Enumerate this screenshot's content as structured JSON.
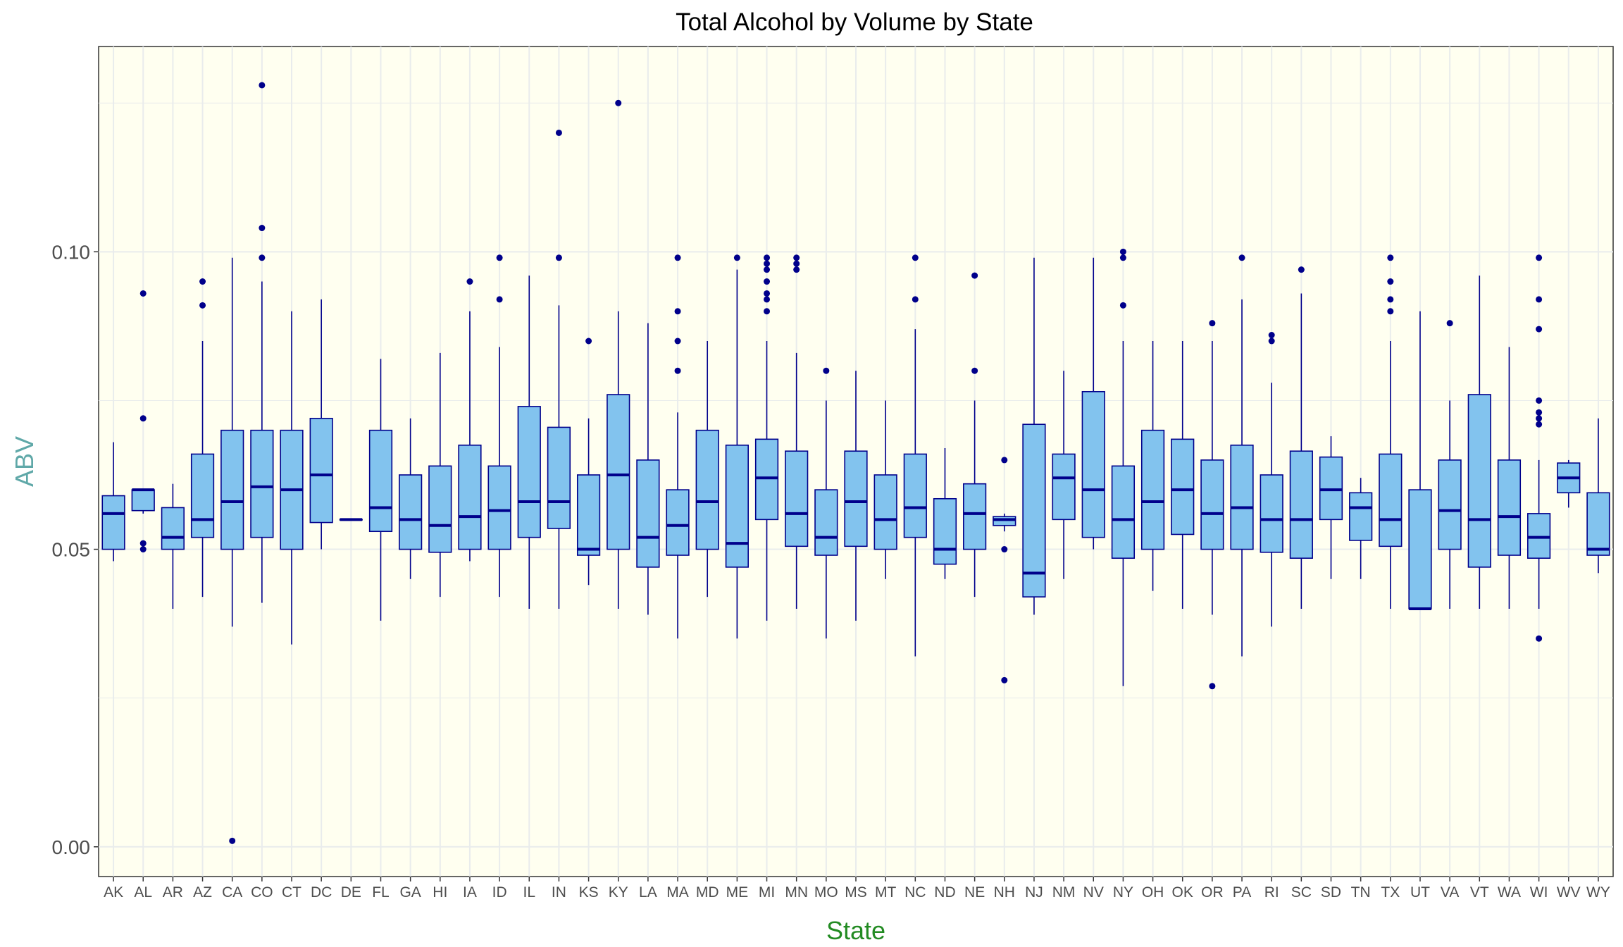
{
  "chart_data": {
    "type": "box",
    "title": "Total Alcohol by Volume by State",
    "xlabel": "State",
    "ylabel": "ABV",
    "ylim": [
      -0.005,
      0.1345
    ],
    "yticks": [
      0.0,
      0.05,
      0.1
    ],
    "ytick_labels": [
      "0.00",
      "0.05",
      "0.10"
    ],
    "grid": true,
    "colors": {
      "panel_background": "#fffff0",
      "grid": "#e9ecec",
      "box_fill": "#82c3ee",
      "box_line": "#00008b",
      "xlabel_color": "#228b22",
      "ylabel_color": "#5fa8a8"
    },
    "categories": [
      "AK",
      "AL",
      "AR",
      "AZ",
      "CA",
      "CO",
      "CT",
      "DC",
      "DE",
      "FL",
      "GA",
      "HI",
      "IA",
      "ID",
      "IL",
      "IN",
      "KS",
      "KY",
      "LA",
      "MA",
      "MD",
      "ME",
      "MI",
      "MN",
      "MO",
      "MS",
      "MT",
      "NC",
      "ND",
      "NE",
      "NH",
      "NJ",
      "NM",
      "NV",
      "NY",
      "OH",
      "OK",
      "OR",
      "PA",
      "RI",
      "SC",
      "SD",
      "TN",
      "TX",
      "UT",
      "VA",
      "VT",
      "WA",
      "WI",
      "WV",
      "WY"
    ],
    "boxes": [
      {
        "q1": 0.05,
        "median": 0.056,
        "q3": 0.059,
        "lower": 0.048,
        "upper": 0.068,
        "outliers": []
      },
      {
        "q1": 0.0565,
        "median": 0.06,
        "q3": 0.06,
        "lower": 0.056,
        "upper": 0.06,
        "outliers": [
          0.05,
          0.051,
          0.072,
          0.093
        ]
      },
      {
        "q1": 0.05,
        "median": 0.052,
        "q3": 0.057,
        "lower": 0.04,
        "upper": 0.061,
        "outliers": []
      },
      {
        "q1": 0.052,
        "median": 0.055,
        "q3": 0.066,
        "lower": 0.042,
        "upper": 0.085,
        "outliers": [
          0.091,
          0.095
        ]
      },
      {
        "q1": 0.05,
        "median": 0.058,
        "q3": 0.07,
        "lower": 0.037,
        "upper": 0.099,
        "outliers": [
          0.001
        ]
      },
      {
        "q1": 0.052,
        "median": 0.0605,
        "q3": 0.07,
        "lower": 0.041,
        "upper": 0.095,
        "outliers": [
          0.099,
          0.104,
          0.128
        ]
      },
      {
        "q1": 0.05,
        "median": 0.06,
        "q3": 0.07,
        "lower": 0.034,
        "upper": 0.09,
        "outliers": []
      },
      {
        "q1": 0.0545,
        "median": 0.0625,
        "q3": 0.072,
        "lower": 0.05,
        "upper": 0.092,
        "outliers": []
      },
      {
        "q1": 0.055,
        "median": 0.055,
        "q3": 0.055,
        "lower": 0.055,
        "upper": 0.055,
        "outliers": []
      },
      {
        "q1": 0.053,
        "median": 0.057,
        "q3": 0.07,
        "lower": 0.038,
        "upper": 0.082,
        "outliers": []
      },
      {
        "q1": 0.05,
        "median": 0.055,
        "q3": 0.0625,
        "lower": 0.045,
        "upper": 0.072,
        "outliers": []
      },
      {
        "q1": 0.0495,
        "median": 0.054,
        "q3": 0.064,
        "lower": 0.042,
        "upper": 0.083,
        "outliers": []
      },
      {
        "q1": 0.05,
        "median": 0.0555,
        "q3": 0.0675,
        "lower": 0.048,
        "upper": 0.09,
        "outliers": [
          0.095
        ]
      },
      {
        "q1": 0.05,
        "median": 0.0565,
        "q3": 0.064,
        "lower": 0.042,
        "upper": 0.084,
        "outliers": [
          0.092,
          0.099
        ]
      },
      {
        "q1": 0.052,
        "median": 0.058,
        "q3": 0.074,
        "lower": 0.04,
        "upper": 0.096,
        "outliers": []
      },
      {
        "q1": 0.0535,
        "median": 0.058,
        "q3": 0.0705,
        "lower": 0.04,
        "upper": 0.091,
        "outliers": [
          0.099,
          0.12
        ]
      },
      {
        "q1": 0.049,
        "median": 0.05,
        "q3": 0.0625,
        "lower": 0.044,
        "upper": 0.072,
        "outliers": [
          0.085
        ]
      },
      {
        "q1": 0.05,
        "median": 0.0625,
        "q3": 0.076,
        "lower": 0.04,
        "upper": 0.09,
        "outliers": [
          0.125
        ]
      },
      {
        "q1": 0.047,
        "median": 0.052,
        "q3": 0.065,
        "lower": 0.039,
        "upper": 0.088,
        "outliers": []
      },
      {
        "q1": 0.049,
        "median": 0.054,
        "q3": 0.06,
        "lower": 0.035,
        "upper": 0.073,
        "outliers": [
          0.08,
          0.085,
          0.09,
          0.099
        ]
      },
      {
        "q1": 0.05,
        "median": 0.058,
        "q3": 0.07,
        "lower": 0.042,
        "upper": 0.085,
        "outliers": []
      },
      {
        "q1": 0.047,
        "median": 0.051,
        "q3": 0.0675,
        "lower": 0.035,
        "upper": 0.097,
        "outliers": [
          0.099
        ]
      },
      {
        "q1": 0.055,
        "median": 0.062,
        "q3": 0.0685,
        "lower": 0.038,
        "upper": 0.085,
        "outliers": [
          0.09,
          0.092,
          0.093,
          0.095,
          0.097,
          0.098,
          0.099
        ]
      },
      {
        "q1": 0.0505,
        "median": 0.056,
        "q3": 0.0665,
        "lower": 0.04,
        "upper": 0.083,
        "outliers": [
          0.097,
          0.098,
          0.099
        ]
      },
      {
        "q1": 0.049,
        "median": 0.052,
        "q3": 0.06,
        "lower": 0.035,
        "upper": 0.075,
        "outliers": [
          0.08
        ]
      },
      {
        "q1": 0.0505,
        "median": 0.058,
        "q3": 0.0665,
        "lower": 0.038,
        "upper": 0.08,
        "outliers": []
      },
      {
        "q1": 0.05,
        "median": 0.055,
        "q3": 0.0625,
        "lower": 0.045,
        "upper": 0.075,
        "outliers": []
      },
      {
        "q1": 0.052,
        "median": 0.057,
        "q3": 0.066,
        "lower": 0.032,
        "upper": 0.087,
        "outliers": [
          0.092,
          0.099
        ]
      },
      {
        "q1": 0.0475,
        "median": 0.05,
        "q3": 0.0585,
        "lower": 0.045,
        "upper": 0.067,
        "outliers": []
      },
      {
        "q1": 0.05,
        "median": 0.056,
        "q3": 0.061,
        "lower": 0.042,
        "upper": 0.075,
        "outliers": [
          0.08,
          0.096
        ]
      },
      {
        "q1": 0.054,
        "median": 0.055,
        "q3": 0.0555,
        "lower": 0.053,
        "upper": 0.056,
        "outliers": [
          0.028,
          0.05,
          0.065
        ]
      },
      {
        "q1": 0.042,
        "median": 0.046,
        "q3": 0.071,
        "lower": 0.039,
        "upper": 0.099,
        "outliers": []
      },
      {
        "q1": 0.055,
        "median": 0.062,
        "q3": 0.066,
        "lower": 0.045,
        "upper": 0.08,
        "outliers": []
      },
      {
        "q1": 0.052,
        "median": 0.06,
        "q3": 0.0765,
        "lower": 0.05,
        "upper": 0.099,
        "outliers": []
      },
      {
        "q1": 0.0485,
        "median": 0.055,
        "q3": 0.064,
        "lower": 0.027,
        "upper": 0.085,
        "outliers": [
          0.091,
          0.099,
          0.1
        ]
      },
      {
        "q1": 0.05,
        "median": 0.058,
        "q3": 0.07,
        "lower": 0.043,
        "upper": 0.085,
        "outliers": []
      },
      {
        "q1": 0.0525,
        "median": 0.06,
        "q3": 0.0685,
        "lower": 0.04,
        "upper": 0.085,
        "outliers": []
      },
      {
        "q1": 0.05,
        "median": 0.056,
        "q3": 0.065,
        "lower": 0.039,
        "upper": 0.085,
        "outliers": [
          0.027,
          0.088
        ]
      },
      {
        "q1": 0.05,
        "median": 0.057,
        "q3": 0.0675,
        "lower": 0.032,
        "upper": 0.092,
        "outliers": [
          0.099
        ]
      },
      {
        "q1": 0.0495,
        "median": 0.055,
        "q3": 0.0625,
        "lower": 0.037,
        "upper": 0.078,
        "outliers": [
          0.085,
          0.086
        ]
      },
      {
        "q1": 0.0485,
        "median": 0.055,
        "q3": 0.0665,
        "lower": 0.04,
        "upper": 0.093,
        "outliers": [
          0.097
        ]
      },
      {
        "q1": 0.055,
        "median": 0.06,
        "q3": 0.0655,
        "lower": 0.045,
        "upper": 0.069,
        "outliers": []
      },
      {
        "q1": 0.0515,
        "median": 0.057,
        "q3": 0.0595,
        "lower": 0.045,
        "upper": 0.062,
        "outliers": []
      },
      {
        "q1": 0.0505,
        "median": 0.055,
        "q3": 0.066,
        "lower": 0.04,
        "upper": 0.085,
        "outliers": [
          0.09,
          0.092,
          0.095,
          0.099
        ]
      },
      {
        "q1": 0.04,
        "median": 0.04,
        "q3": 0.06,
        "lower": 0.04,
        "upper": 0.09,
        "outliers": []
      },
      {
        "q1": 0.05,
        "median": 0.0565,
        "q3": 0.065,
        "lower": 0.04,
        "upper": 0.075,
        "outliers": [
          0.088
        ]
      },
      {
        "q1": 0.047,
        "median": 0.055,
        "q3": 0.076,
        "lower": 0.04,
        "upper": 0.096,
        "outliers": []
      },
      {
        "q1": 0.049,
        "median": 0.0555,
        "q3": 0.065,
        "lower": 0.04,
        "upper": 0.084,
        "outliers": []
      },
      {
        "q1": 0.0485,
        "median": 0.052,
        "q3": 0.056,
        "lower": 0.04,
        "upper": 0.065,
        "outliers": [
          0.035,
          0.071,
          0.072,
          0.073,
          0.075,
          0.087,
          0.092,
          0.099
        ]
      },
      {
        "q1": 0.0595,
        "median": 0.062,
        "q3": 0.0645,
        "lower": 0.057,
        "upper": 0.065,
        "outliers": []
      },
      {
        "q1": 0.049,
        "median": 0.05,
        "q3": 0.0595,
        "lower": 0.046,
        "upper": 0.072,
        "outliers": []
      }
    ]
  }
}
